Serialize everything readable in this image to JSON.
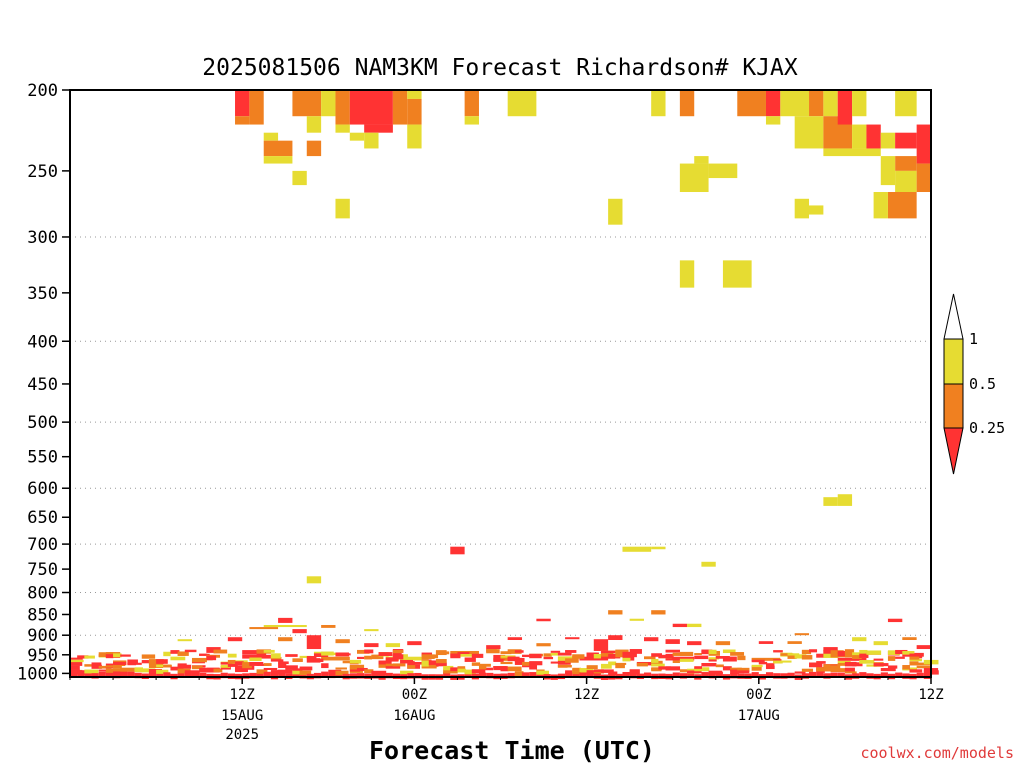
{
  "chart_data": {
    "type": "heatmap",
    "title": "2025081506 NAM3KM Forecast Richardson# KJAX",
    "xlabel": "Forecast Time (UTC)",
    "ylabel": "",
    "y_scale": "log",
    "y_reversed": true,
    "ylim": [
      1010,
      200
    ],
    "xlim_hours": [
      -6,
      54
    ],
    "y_ticks": [
      200,
      250,
      300,
      350,
      400,
      450,
      500,
      550,
      600,
      650,
      700,
      750,
      800,
      850,
      900,
      950,
      1000
    ],
    "y_tick_labels": [
      "200",
      "250",
      "300",
      "350",
      "400",
      "450",
      "500",
      "550",
      "600",
      "650",
      "700",
      "750",
      "800",
      "850",
      "900",
      "950",
      "1000"
    ],
    "gridlines_hpa": [
      300,
      400,
      500,
      600,
      700,
      800,
      900
    ],
    "x_ticks": [
      {
        "hour": 6,
        "label": "12Z",
        "sub1": "15AUG",
        "sub2": "2025"
      },
      {
        "hour": 18,
        "label": "00Z",
        "sub1": "16AUG",
        "sub2": ""
      },
      {
        "hour": 30,
        "label": "12Z",
        "sub1": "",
        "sub2": ""
      },
      {
        "hour": 42,
        "label": "00Z",
        "sub1": "17AUG",
        "sub2": ""
      },
      {
        "hour": 54,
        "label": "12Z",
        "sub1": "",
        "sub2": ""
      }
    ],
    "legend": {
      "placement": "right",
      "labels": [
        "1",
        "0.5",
        "0.25"
      ],
      "bins": [
        {
          "range": "<0.25",
          "color": "#ff3333"
        },
        {
          "range": "0.25-0.5",
          "color": "#f08020"
        },
        {
          "range": "0.5-1",
          "color": "#e6dc32"
        },
        {
          "range": ">1",
          "color": "#ffffff"
        }
      ]
    },
    "colors": {
      "red": "#ff3333",
      "orange": "#f08020",
      "yellow": "#e6dc32",
      "ground": "#a0522d"
    },
    "ground_level_hpa": 1010,
    "cells": [
      {
        "t0": 5.5,
        "t1": 6.5,
        "p0": 200,
        "p1": 215,
        "c": "red"
      },
      {
        "t0": 5.5,
        "t1": 6.5,
        "p0": 215,
        "p1": 220,
        "c": "orange"
      },
      {
        "t0": 6.5,
        "t1": 7.5,
        "p0": 200,
        "p1": 220,
        "c": "orange"
      },
      {
        "t0": 7.5,
        "t1": 8.5,
        "p0": 225,
        "p1": 230,
        "c": "yellow"
      },
      {
        "t0": 7.5,
        "t1": 9.5,
        "p0": 230,
        "p1": 240,
        "c": "orange"
      },
      {
        "t0": 7.5,
        "t1": 9.5,
        "p0": 240,
        "p1": 245,
        "c": "yellow"
      },
      {
        "t0": 9.5,
        "t1": 11.5,
        "p0": 200,
        "p1": 215,
        "c": "orange"
      },
      {
        "t0": 11.5,
        "t1": 12.5,
        "p0": 200,
        "p1": 215,
        "c": "yellow"
      },
      {
        "t0": 10.5,
        "t1": 11.5,
        "p0": 215,
        "p1": 225,
        "c": "yellow"
      },
      {
        "t0": 10.5,
        "t1": 11.5,
        "p0": 230,
        "p1": 240,
        "c": "orange"
      },
      {
        "t0": 9.5,
        "t1": 10.5,
        "p0": 250,
        "p1": 260,
        "c": "yellow"
      },
      {
        "t0": 12.5,
        "t1": 13.5,
        "p0": 200,
        "p1": 220,
        "c": "orange"
      },
      {
        "t0": 12.5,
        "t1": 13.5,
        "p0": 220,
        "p1": 225,
        "c": "yellow"
      },
      {
        "t0": 13.5,
        "t1": 16.5,
        "p0": 200,
        "p1": 220,
        "c": "red"
      },
      {
        "t0": 14.5,
        "t1": 16.5,
        "p0": 220,
        "p1": 225,
        "c": "red"
      },
      {
        "t0": 16.5,
        "t1": 17.5,
        "p0": 200,
        "p1": 220,
        "c": "orange"
      },
      {
        "t0": 17.5,
        "t1": 18.5,
        "p0": 200,
        "p1": 205,
        "c": "yellow"
      },
      {
        "t0": 17.5,
        "t1": 18.5,
        "p0": 205,
        "p1": 220,
        "c": "orange"
      },
      {
        "t0": 13.5,
        "t1": 14.5,
        "p0": 225,
        "p1": 230,
        "c": "yellow"
      },
      {
        "t0": 14.5,
        "t1": 15.5,
        "p0": 225,
        "p1": 235,
        "c": "yellow"
      },
      {
        "t0": 17.5,
        "t1": 18.5,
        "p0": 220,
        "p1": 235,
        "c": "yellow"
      },
      {
        "t0": 12.5,
        "t1": 13.5,
        "p0": 270,
        "p1": 285,
        "c": "yellow"
      },
      {
        "t0": 21.5,
        "t1": 22.5,
        "p0": 200,
        "p1": 215,
        "c": "orange"
      },
      {
        "t0": 21.5,
        "t1": 22.5,
        "p0": 215,
        "p1": 220,
        "c": "yellow"
      },
      {
        "t0": 24.5,
        "t1": 26.5,
        "p0": 200,
        "p1": 215,
        "c": "yellow"
      },
      {
        "t0": 31.5,
        "t1": 32.5,
        "p0": 270,
        "p1": 290,
        "c": "yellow"
      },
      {
        "t0": 34.5,
        "t1": 35.5,
        "p0": 200,
        "p1": 215,
        "c": "yellow"
      },
      {
        "t0": 36.5,
        "t1": 37.5,
        "p0": 200,
        "p1": 215,
        "c": "orange"
      },
      {
        "t0": 36.5,
        "t1": 38.5,
        "p0": 245,
        "p1": 265,
        "c": "yellow"
      },
      {
        "t0": 37.5,
        "t1": 38.5,
        "p0": 240,
        "p1": 245,
        "c": "yellow"
      },
      {
        "t0": 38.5,
        "t1": 40.5,
        "p0": 245,
        "p1": 255,
        "c": "yellow"
      },
      {
        "t0": 36.5,
        "t1": 37.5,
        "p0": 320,
        "p1": 345,
        "c": "yellow"
      },
      {
        "t0": 39.5,
        "t1": 41.5,
        "p0": 320,
        "p1": 345,
        "c": "yellow"
      },
      {
        "t0": 40.5,
        "t1": 42.5,
        "p0": 200,
        "p1": 215,
        "c": "orange"
      },
      {
        "t0": 42.5,
        "t1": 43.5,
        "p0": 200,
        "p1": 215,
        "c": "red"
      },
      {
        "t0": 42.5,
        "t1": 43.5,
        "p0": 215,
        "p1": 220,
        "c": "yellow"
      },
      {
        "t0": 43.5,
        "t1": 45.5,
        "p0": 200,
        "p1": 215,
        "c": "yellow"
      },
      {
        "t0": 45.5,
        "t1": 46.5,
        "p0": 200,
        "p1": 215,
        "c": "orange"
      },
      {
        "t0": 44.5,
        "t1": 46.5,
        "p0": 215,
        "p1": 235,
        "c": "yellow"
      },
      {
        "t0": 46.5,
        "t1": 47.5,
        "p0": 200,
        "p1": 215,
        "c": "yellow"
      },
      {
        "t0": 46.5,
        "t1": 48.5,
        "p0": 215,
        "p1": 235,
        "c": "orange"
      },
      {
        "t0": 47.5,
        "t1": 48.5,
        "p0": 200,
        "p1": 220,
        "c": "red"
      },
      {
        "t0": 48.5,
        "t1": 49.5,
        "p0": 200,
        "p1": 215,
        "c": "yellow"
      },
      {
        "t0": 46.5,
        "t1": 50.5,
        "p0": 235,
        "p1": 240,
        "c": "yellow"
      },
      {
        "t0": 48.5,
        "t1": 49.5,
        "p0": 220,
        "p1": 235,
        "c": "yellow"
      },
      {
        "t0": 49.5,
        "t1": 50.5,
        "p0": 220,
        "p1": 235,
        "c": "red"
      },
      {
        "t0": 50.5,
        "t1": 51.5,
        "p0": 225,
        "p1": 235,
        "c": "yellow"
      },
      {
        "t0": 51.5,
        "t1": 53.0,
        "p0": 200,
        "p1": 215,
        "c": "yellow"
      },
      {
        "t0": 51.5,
        "t1": 53.0,
        "p0": 225,
        "p1": 235,
        "c": "red"
      },
      {
        "t0": 53.0,
        "t1": 54.0,
        "p0": 220,
        "p1": 245,
        "c": "red"
      },
      {
        "t0": 51.5,
        "t1": 53.0,
        "p0": 240,
        "p1": 250,
        "c": "orange"
      },
      {
        "t0": 50.5,
        "t1": 51.5,
        "p0": 240,
        "p1": 260,
        "c": "yellow"
      },
      {
        "t0": 51.5,
        "t1": 53.0,
        "p0": 250,
        "p1": 265,
        "c": "yellow"
      },
      {
        "t0": 53.0,
        "t1": 54.0,
        "p0": 245,
        "p1": 265,
        "c": "orange"
      },
      {
        "t0": 51.0,
        "t1": 53.0,
        "p0": 265,
        "p1": 285,
        "c": "orange"
      },
      {
        "t0": 50.0,
        "t1": 51.0,
        "p0": 265,
        "p1": 285,
        "c": "yellow"
      },
      {
        "t0": 44.5,
        "t1": 45.5,
        "p0": 270,
        "p1": 285,
        "c": "yellow"
      },
      {
        "t0": 45.5,
        "t1": 46.5,
        "p0": 275,
        "p1": 282,
        "c": "yellow"
      },
      {
        "t0": 47.5,
        "t1": 48.5,
        "p0": 610,
        "p1": 630,
        "c": "yellow"
      },
      {
        "t0": 46.5,
        "t1": 47.5,
        "p0": 615,
        "p1": 630,
        "c": "yellow"
      },
      {
        "t0": 32.5,
        "t1": 34.5,
        "p0": 705,
        "p1": 715,
        "c": "yellow"
      },
      {
        "t0": 34.5,
        "t1": 35.5,
        "p0": 705,
        "p1": 710,
        "c": "yellow"
      },
      {
        "t0": 20.5,
        "t1": 21.5,
        "p0": 705,
        "p1": 720,
        "c": "red"
      },
      {
        "t0": 38.0,
        "t1": 39.0,
        "p0": 735,
        "p1": 745,
        "c": "yellow"
      },
      {
        "t0": 10.5,
        "t1": 11.5,
        "p0": 765,
        "p1": 780,
        "c": "yellow"
      },
      {
        "t0": 8.5,
        "t1": 9.5,
        "p0": 858,
        "p1": 870,
        "c": "red"
      },
      {
        "t0": 7.5,
        "t1": 10.5,
        "p0": 875,
        "p1": 880,
        "c": "yellow"
      },
      {
        "t0": 6.5,
        "t1": 8.5,
        "p0": 880,
        "p1": 885,
        "c": "orange"
      },
      {
        "t0": 9.5,
        "t1": 10.5,
        "p0": 885,
        "p1": 895,
        "c": "red"
      },
      {
        "t0": 11.5,
        "t1": 12.5,
        "p0": 875,
        "p1": 882,
        "c": "orange"
      },
      {
        "t0": 14.5,
        "t1": 15.5,
        "p0": 885,
        "p1": 890,
        "c": "yellow"
      },
      {
        "t0": 26.5,
        "t1": 27.5,
        "p0": 860,
        "p1": 866,
        "c": "red"
      },
      {
        "t0": 31.5,
        "t1": 32.5,
        "p0": 840,
        "p1": 850,
        "c": "orange"
      },
      {
        "t0": 34.5,
        "t1": 35.5,
        "p0": 840,
        "p1": 850,
        "c": "orange"
      },
      {
        "t0": 33.0,
        "t1": 34.0,
        "p0": 860,
        "p1": 865,
        "c": "yellow"
      },
      {
        "t0": 36.0,
        "t1": 37.0,
        "p0": 872,
        "p1": 880,
        "c": "red"
      },
      {
        "t0": 37.0,
        "t1": 38.0,
        "p0": 872,
        "p1": 880,
        "c": "yellow"
      },
      {
        "t0": 44.5,
        "t1": 45.5,
        "p0": 895,
        "p1": 900,
        "c": "orange"
      },
      {
        "t0": 51.0,
        "t1": 52.0,
        "p0": 860,
        "p1": 868,
        "c": "red"
      },
      {
        "t0": 1.5,
        "t1": 2.5,
        "p0": 910,
        "p1": 915,
        "c": "yellow"
      },
      {
        "t0": 3.5,
        "t1": 4.5,
        "p0": 930,
        "p1": 945,
        "c": "red"
      },
      {
        "t0": 5.0,
        "t1": 6.0,
        "p0": 905,
        "p1": 915,
        "c": "red"
      },
      {
        "t0": 8.5,
        "t1": 9.5,
        "p0": 905,
        "p1": 915,
        "c": "orange"
      },
      {
        "t0": 10.5,
        "t1": 11.5,
        "p0": 900,
        "p1": 935,
        "c": "red"
      },
      {
        "t0": 12.5,
        "t1": 13.5,
        "p0": 910,
        "p1": 920,
        "c": "orange"
      },
      {
        "t0": 14.5,
        "t1": 15.5,
        "p0": 920,
        "p1": 930,
        "c": "red"
      },
      {
        "t0": 16.0,
        "t1": 17.0,
        "p0": 920,
        "p1": 930,
        "c": "yellow"
      },
      {
        "t0": 17.5,
        "t1": 18.5,
        "p0": 915,
        "p1": 925,
        "c": "red"
      },
      {
        "t0": 20.5,
        "t1": 22.5,
        "p0": 940,
        "p1": 948,
        "c": "orange"
      },
      {
        "t0": 20.5,
        "t1": 22.5,
        "p0": 948,
        "p1": 955,
        "c": "yellow"
      },
      {
        "t0": 23.0,
        "t1": 24.0,
        "p0": 925,
        "p1": 935,
        "c": "red"
      },
      {
        "t0": 24.5,
        "t1": 25.5,
        "p0": 905,
        "p1": 912,
        "c": "red"
      },
      {
        "t0": 26.5,
        "t1": 27.5,
        "p0": 920,
        "p1": 928,
        "c": "orange"
      },
      {
        "t0": 28.5,
        "t1": 29.5,
        "p0": 905,
        "p1": 910,
        "c": "red"
      },
      {
        "t0": 30.5,
        "t1": 31.5,
        "p0": 910,
        "p1": 940,
        "c": "red"
      },
      {
        "t0": 31.5,
        "t1": 32.5,
        "p0": 900,
        "p1": 912,
        "c": "red"
      },
      {
        "t0": 34.0,
        "t1": 35.0,
        "p0": 905,
        "p1": 915,
        "c": "red"
      },
      {
        "t0": 35.5,
        "t1": 36.5,
        "p0": 910,
        "p1": 922,
        "c": "red"
      },
      {
        "t0": 37.0,
        "t1": 38.0,
        "p0": 915,
        "p1": 925,
        "c": "red"
      },
      {
        "t0": 39.0,
        "t1": 40.0,
        "p0": 915,
        "p1": 925,
        "c": "orange"
      },
      {
        "t0": 42.0,
        "t1": 43.0,
        "p0": 915,
        "p1": 922,
        "c": "red"
      },
      {
        "t0": 44.0,
        "t1": 45.0,
        "p0": 915,
        "p1": 922,
        "c": "orange"
      },
      {
        "t0": 46.5,
        "t1": 47.5,
        "p0": 930,
        "p1": 940,
        "c": "red"
      },
      {
        "t0": 48.5,
        "t1": 49.5,
        "p0": 905,
        "p1": 915,
        "c": "yellow"
      },
      {
        "t0": 50.0,
        "t1": 51.0,
        "p0": 915,
        "p1": 925,
        "c": "yellow"
      },
      {
        "t0": 52.0,
        "t1": 53.0,
        "p0": 905,
        "p1": 912,
        "c": "orange"
      },
      {
        "t0": 53.0,
        "t1": 54.0,
        "p0": 925,
        "p1": 935,
        "c": "red"
      },
      {
        "t0": 52.0,
        "t1": 53.5,
        "p0": 945,
        "p1": 955,
        "c": "red"
      },
      {
        "t0": 6.0,
        "t1": 8.0,
        "p0": 950,
        "p1": 960,
        "c": "red"
      },
      {
        "t0": 11.5,
        "t1": 13.5,
        "p0": 955,
        "p1": 965,
        "c": "orange"
      },
      {
        "t0": 17.0,
        "t1": 19.0,
        "p0": 955,
        "p1": 965,
        "c": "yellow"
      },
      {
        "t0": 23.5,
        "t1": 25.5,
        "p0": 958,
        "p1": 966,
        "c": "orange"
      },
      {
        "t0": 29.5,
        "t1": 31.5,
        "p0": 955,
        "p1": 965,
        "c": "red"
      },
      {
        "t0": 35.5,
        "t1": 37.5,
        "p0": 955,
        "p1": 965,
        "c": "red"
      },
      {
        "t0": 41.5,
        "t1": 43.5,
        "p0": 958,
        "p1": 966,
        "c": "orange"
      },
      {
        "t0": 47.5,
        "t1": 49.5,
        "p0": 958,
        "p1": 966,
        "c": "red"
      }
    ]
  },
  "credit": "coolwx.com/models"
}
